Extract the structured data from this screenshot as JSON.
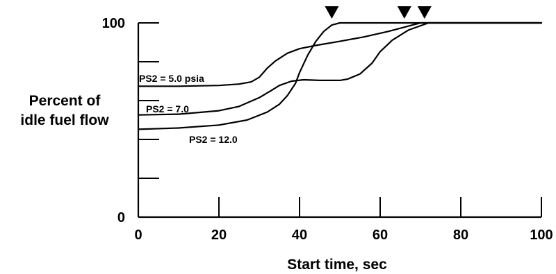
{
  "chart_data": {
    "type": "line",
    "title": "",
    "xlabel": "Start time, sec",
    "ylabel": [
      "Percent of",
      "idle fuel flow"
    ],
    "xlim": [
      0,
      100
    ],
    "ylim": [
      0,
      100
    ],
    "x_ticks": [
      0,
      20,
      40,
      60,
      80,
      100
    ],
    "y_tick_labels": [
      0,
      100
    ],
    "y_tick_marks": [
      0,
      20,
      40,
      60,
      80,
      100
    ],
    "series": [
      {
        "name": "PS2 = 5.0 psia",
        "label": "PS2 = 5.0 psia",
        "x": [
          0,
          10,
          20,
          25,
          28,
          30,
          32,
          34,
          37,
          40,
          44,
          50,
          56,
          62,
          66,
          68,
          70,
          100
        ],
        "y": [
          67.4,
          67.4,
          67.8,
          68.5,
          69.6,
          72,
          76.7,
          80.4,
          84.4,
          86.7,
          88.4,
          90.5,
          92.8,
          95.6,
          97.8,
          98.9,
          100,
          100
        ]
      },
      {
        "name": "PS2 = 7.0",
        "label": "PS2 = 7.0",
        "x": [
          0,
          10,
          20,
          25,
          30,
          33,
          35,
          38,
          41,
          45,
          50,
          52,
          55,
          58,
          60,
          63,
          67,
          72,
          100
        ],
        "y": [
          52.6,
          53,
          54.8,
          57,
          61.5,
          65.2,
          67.8,
          70,
          70.7,
          70.4,
          70.4,
          71.1,
          73.7,
          79.3,
          85.2,
          91.1,
          96.3,
          100,
          100
        ]
      },
      {
        "name": "PS2 = 12.0",
        "label": "PS2 = 12.0",
        "x": [
          0,
          10,
          20,
          27,
          32,
          35,
          37,
          39,
          40,
          42,
          44,
          46,
          48,
          50,
          100
        ],
        "y": [
          45.2,
          45.9,
          47.4,
          50,
          54.1,
          58.1,
          62.6,
          68.9,
          74.4,
          83.3,
          90.4,
          95.6,
          98.9,
          100,
          100
        ]
      }
    ],
    "end_markers_x": [
      48,
      66,
      71
    ]
  }
}
